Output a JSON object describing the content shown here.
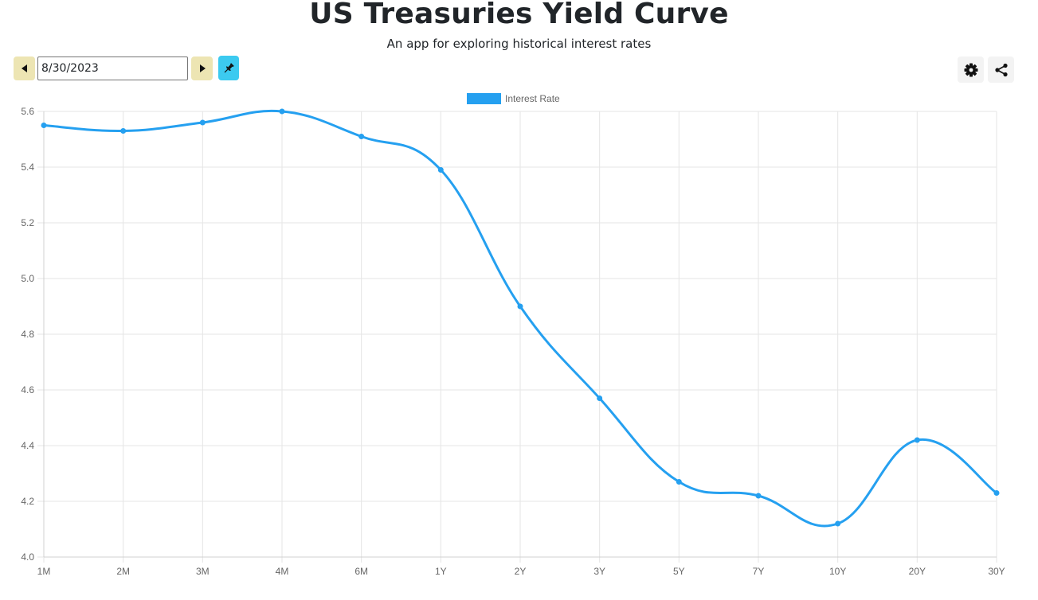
{
  "header": {
    "title": "US Treasuries Yield Curve",
    "subtitle": "An app for exploring historical interest rates"
  },
  "toolbar": {
    "date_value": "8/30/2023",
    "prev_icon": "caret-left-icon",
    "next_icon": "caret-right-icon",
    "pin_icon": "pin-icon",
    "settings_icon": "gear-icon",
    "share_icon": "share-icon"
  },
  "colors": {
    "nav_button": "#ede5b3",
    "pin_button": "#3ccaf0",
    "series_line": "#25a0f0"
  },
  "chart_data": {
    "type": "line",
    "title": "",
    "xlabel": "",
    "ylabel": "",
    "categories": [
      "1M",
      "2M",
      "3M",
      "4M",
      "6M",
      "1Y",
      "2Y",
      "3Y",
      "5Y",
      "7Y",
      "10Y",
      "20Y",
      "30Y"
    ],
    "series": [
      {
        "name": "Interest Rate",
        "values": [
          5.55,
          5.53,
          5.56,
          5.6,
          5.51,
          5.39,
          4.9,
          4.57,
          4.27,
          4.22,
          4.12,
          4.42,
          4.23
        ]
      }
    ],
    "ylim": [
      4.0,
      5.6
    ],
    "yticks": [
      "4.0",
      "4.2",
      "4.4",
      "4.6",
      "4.8",
      "5.0",
      "5.2",
      "5.4",
      "5.6"
    ],
    "grid": true,
    "legend": "top-center"
  }
}
